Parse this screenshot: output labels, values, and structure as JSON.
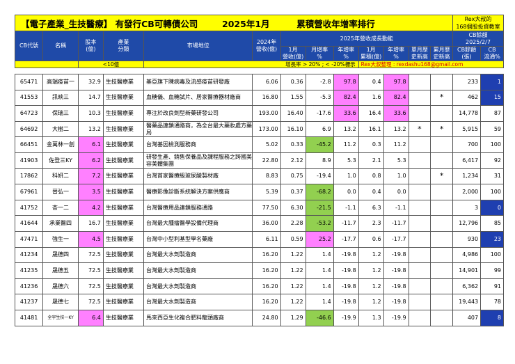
{
  "title": {
    "main": "【電子產業_生技醫療】 有發行CB可轉債公司",
    "period": "2025年1月",
    "subject": "累積營收年增率排行",
    "brand_line1": "Rex大叔的",
    "brand_line2": "168個股投資教室"
  },
  "headers": {
    "cb_code": "CB代號",
    "name": "名稱",
    "capital": "股本\n(億)",
    "industry": "產業\n分類",
    "market_position": "市場地位",
    "revenue_2024": "2024年\n營收(億)",
    "growth_group": "2025年營收成長動能",
    "cb_balance_group": "CB餘額\n2025/2/7",
    "m1_revenue": "1月\n營收(億)",
    "m_yoy": "月增率\n%",
    "yoy": "年增率\n%",
    "m1_cum_revenue": "1月\n累積(億)",
    "cum_yoy": "年增率\n%",
    "month_high": "單月歷\n史新高",
    "cum_high": "累月歷\n史新高",
    "cb_amount": "CB餘額\n(張)",
    "cb_float": "CB\n流通%"
  },
  "legend": {
    "lt10": "<10億",
    "rule": "增長率 > 20% ; < -20%標示",
    "credit": "Rex大叔整理 : rexdashu168@gmail.com"
  },
  "colors": {
    "title_bg": "#ffff00",
    "header_bg": "#1f4aa8",
    "capital_lt10": "#ff80ff",
    "growth_gt20": "#ff80ff",
    "growth_lt_minus20": "#92d050",
    "cb_float_low": "#1f3fb0"
  },
  "rows": [
    {
      "code": "65471",
      "name": "高端疫苗一",
      "capital": "32.9",
      "industry": "生技醫療業",
      "market": "基亞旗下陳病毒及流感疫苗研發廠",
      "rev2024": "6.06",
      "m1": "0.36",
      "mom": "-2.8",
      "yoy": "97.8",
      "cum": "0.4",
      "cumyoy": "97.8",
      "mhigh": "",
      "chigh": "",
      "cbamt": "233",
      "cbpct": "1",
      "hl_capital": false,
      "hl_mom": "",
      "hl_yoy": "pink",
      "hl_cumyoy": "pink",
      "hl_cbpct": true,
      "small_name": false
    },
    {
      "code": "41553",
      "name": "訊映三",
      "capital": "14.7",
      "industry": "生技醫療業",
      "market": "血糖儀、血糖試片、居家醫療器材廠商",
      "rev2024": "16.80",
      "m1": "1.55",
      "mom": "-5.3",
      "yoy": "82.4",
      "cum": "1.6",
      "cumyoy": "82.4",
      "mhigh": "",
      "chigh": "*",
      "cbamt": "462",
      "cbpct": "15",
      "hl_capital": false,
      "hl_mom": "",
      "hl_yoy": "pink",
      "hl_cumyoy": "pink",
      "hl_cbpct": true,
      "small_name": false
    },
    {
      "code": "64723",
      "name": "保瑞三",
      "capital": "10.3",
      "industry": "生技醫療業",
      "market": "專注於改良劑型新藥研發公司",
      "rev2024": "193.00",
      "m1": "16.40",
      "mom": "-17.6",
      "yoy": "33.6",
      "cum": "16.4",
      "cumyoy": "33.6",
      "mhigh": "",
      "chigh": "",
      "cbamt": "14,778",
      "cbpct": "87",
      "hl_capital": false,
      "hl_mom": "",
      "hl_yoy": "pink",
      "hl_cumyoy": "pink",
      "hl_cbpct": false,
      "small_name": false
    },
    {
      "code": "64692",
      "name": "大樹二",
      "capital": "13.2",
      "industry": "生技醫療業",
      "market": "醫藥品連鎖通路商，為全台最大藥妝處方藥局",
      "rev2024": "173.00",
      "m1": "16.10",
      "mom": "6.9",
      "yoy": "13.2",
      "cum": "16.1",
      "cumyoy": "13.2",
      "mhigh": "*",
      "chigh": "*",
      "cbamt": "5,915",
      "cbpct": "59",
      "hl_capital": false,
      "hl_mom": "",
      "hl_yoy": "",
      "hl_cumyoy": "",
      "hl_cbpct": false,
      "small_name": false
    },
    {
      "code": "66451",
      "name": "金萬林一創",
      "capital": "6.1",
      "industry": "生技醫療業",
      "market": "台灣基因檢測服務商",
      "rev2024": "5.02",
      "m1": "0.33",
      "mom": "-45.2",
      "yoy": "11.2",
      "cum": "0.3",
      "cumyoy": "11.2",
      "mhigh": "",
      "chigh": "",
      "cbamt": "700",
      "cbpct": "100",
      "hl_capital": true,
      "hl_mom": "green",
      "hl_yoy": "",
      "hl_cumyoy": "",
      "hl_cbpct": false,
      "small_name": false
    },
    {
      "code": "41903",
      "name": "佐登三KY",
      "capital": "6.2",
      "industry": "生技醫療業",
      "market": "研發生產、銷售保養品及課程服務之跨國美容美體集團",
      "rev2024": "22.80",
      "m1": "2.12",
      "mom": "8.9",
      "yoy": "5.3",
      "cum": "2.1",
      "cumyoy": "5.3",
      "mhigh": "",
      "chigh": "",
      "cbamt": "6,417",
      "cbpct": "92",
      "hl_capital": true,
      "hl_mom": "",
      "hl_yoy": "",
      "hl_cumyoy": "",
      "hl_cbpct": false,
      "small_name": false
    },
    {
      "code": "17862",
      "name": "科妍二",
      "capital": "7.2",
      "industry": "生技醫療業",
      "market": "台灣首家醫療級玻尿酸製材廠",
      "rev2024": "8.83",
      "m1": "0.75",
      "mom": "-19.4",
      "yoy": "1.0",
      "cum": "0.8",
      "cumyoy": "1.0",
      "mhigh": "",
      "chigh": "*",
      "cbamt": "1,234",
      "cbpct": "31",
      "hl_capital": true,
      "hl_mom": "",
      "hl_yoy": "",
      "hl_cumyoy": "",
      "hl_cbpct": false,
      "small_name": false
    },
    {
      "code": "67961",
      "name": "晉弘一",
      "capital": "3.5",
      "industry": "生技醫療業",
      "market": "醫療影像診斷系統解決方案供應商",
      "rev2024": "5.39",
      "m1": "0.37",
      "mom": "-68.2",
      "yoy": "0.0",
      "cum": "0.4",
      "cumyoy": "0.0",
      "mhigh": "",
      "chigh": "",
      "cbamt": "2,000",
      "cbpct": "100",
      "hl_capital": true,
      "hl_mom": "green",
      "hl_yoy": "",
      "hl_cumyoy": "",
      "hl_cbpct": false,
      "small_name": false
    },
    {
      "code": "41752",
      "name": "杏一二",
      "capital": "4.2",
      "industry": "生技醫療業",
      "market": "台灣醫療用品連鎖服務通路",
      "rev2024": "77.50",
      "m1": "6.30",
      "mom": "-21.5",
      "yoy": "-1.1",
      "cum": "6.3",
      "cumyoy": "-1.1",
      "mhigh": "",
      "chigh": "",
      "cbamt": "3",
      "cbpct": "0",
      "hl_capital": true,
      "hl_mom": "green",
      "hl_yoy": "",
      "hl_cumyoy": "",
      "hl_cbpct": true,
      "small_name": false
    },
    {
      "code": "41644",
      "name": "承業醫四",
      "capital": "16.7",
      "industry": "生技醫療業",
      "market": "台灣最大腫瘤醫學設備代理商",
      "rev2024": "36.00",
      "m1": "2.28",
      "mom": "-53.2",
      "yoy": "-11.7",
      "cum": "2.3",
      "cumyoy": "-11.7",
      "mhigh": "",
      "chigh": "",
      "cbamt": "12,796",
      "cbpct": "85",
      "hl_capital": false,
      "hl_mom": "green",
      "hl_yoy": "",
      "hl_cumyoy": "",
      "hl_cbpct": false,
      "small_name": false
    },
    {
      "code": "47471",
      "name": "強生一",
      "capital": "4.5",
      "industry": "生技醫療業",
      "market": "台灣中小型利基型學名藥廠",
      "rev2024": "6.11",
      "m1": "0.59",
      "mom": "25.2",
      "yoy": "-17.7",
      "cum": "0.6",
      "cumyoy": "-17.7",
      "mhigh": "",
      "chigh": "",
      "cbamt": "930",
      "cbpct": "23",
      "hl_capital": true,
      "hl_mom": "pink",
      "hl_yoy": "",
      "hl_cumyoy": "",
      "hl_cbpct": true,
      "small_name": false
    },
    {
      "code": "41234",
      "name": "晟德四",
      "capital": "72.5",
      "industry": "生技醫療業",
      "market": "台灣最大水劑製造商",
      "rev2024": "16.20",
      "m1": "1.22",
      "mom": "1.4",
      "yoy": "-19.8",
      "cum": "1.2",
      "cumyoy": "-19.8",
      "mhigh": "",
      "chigh": "",
      "cbamt": "4,986",
      "cbpct": "100",
      "hl_capital": false,
      "hl_mom": "",
      "hl_yoy": "",
      "hl_cumyoy": "",
      "hl_cbpct": false,
      "small_name": false
    },
    {
      "code": "41235",
      "name": "晟德五",
      "capital": "72.5",
      "industry": "生技醫療業",
      "market": "台灣最大水劑製造商",
      "rev2024": "16.20",
      "m1": "1.22",
      "mom": "1.4",
      "yoy": "-19.8",
      "cum": "1.2",
      "cumyoy": "-19.8",
      "mhigh": "",
      "chigh": "",
      "cbamt": "14,901",
      "cbpct": "99",
      "hl_capital": false,
      "hl_mom": "",
      "hl_yoy": "",
      "hl_cumyoy": "",
      "hl_cbpct": false,
      "small_name": false
    },
    {
      "code": "41236",
      "name": "晟德六",
      "capital": "72.5",
      "industry": "生技醫療業",
      "market": "台灣最大水劑製造商",
      "rev2024": "16.20",
      "m1": "1.22",
      "mom": "1.4",
      "yoy": "-19.8",
      "cum": "1.2",
      "cumyoy": "-19.8",
      "mhigh": "",
      "chigh": "",
      "cbamt": "6,362",
      "cbpct": "91",
      "hl_capital": false,
      "hl_mom": "",
      "hl_yoy": "",
      "hl_cumyoy": "",
      "hl_cbpct": false,
      "small_name": false
    },
    {
      "code": "41237",
      "name": "晟德七",
      "capital": "72.5",
      "industry": "生技醫療業",
      "market": "台灣最大水劑製造商",
      "rev2024": "16.20",
      "m1": "1.22",
      "mom": "1.4",
      "yoy": "-19.8",
      "cum": "1.2",
      "cumyoy": "-19.8",
      "mhigh": "",
      "chigh": "",
      "cbamt": "19,443",
      "cbpct": "78",
      "hl_capital": false,
      "hl_mom": "",
      "hl_yoy": "",
      "hl_cumyoy": "",
      "hl_cbpct": false,
      "small_name": false
    },
    {
      "code": "41481",
      "name": "全宇生技一KY",
      "capital": "6.4",
      "industry": "生技醫療業",
      "market": "馬來西亞生化複合肥料龍頭廠商",
      "rev2024": "24.80",
      "m1": "1.29",
      "mom": "-46.6",
      "yoy": "-19.9",
      "cum": "1.3",
      "cumyoy": "-19.9",
      "mhigh": "",
      "chigh": "",
      "cbamt": "407",
      "cbpct": "8",
      "hl_capital": true,
      "hl_mom": "green",
      "hl_yoy": "",
      "hl_cumyoy": "",
      "hl_cbpct": true,
      "small_name": true
    }
  ]
}
